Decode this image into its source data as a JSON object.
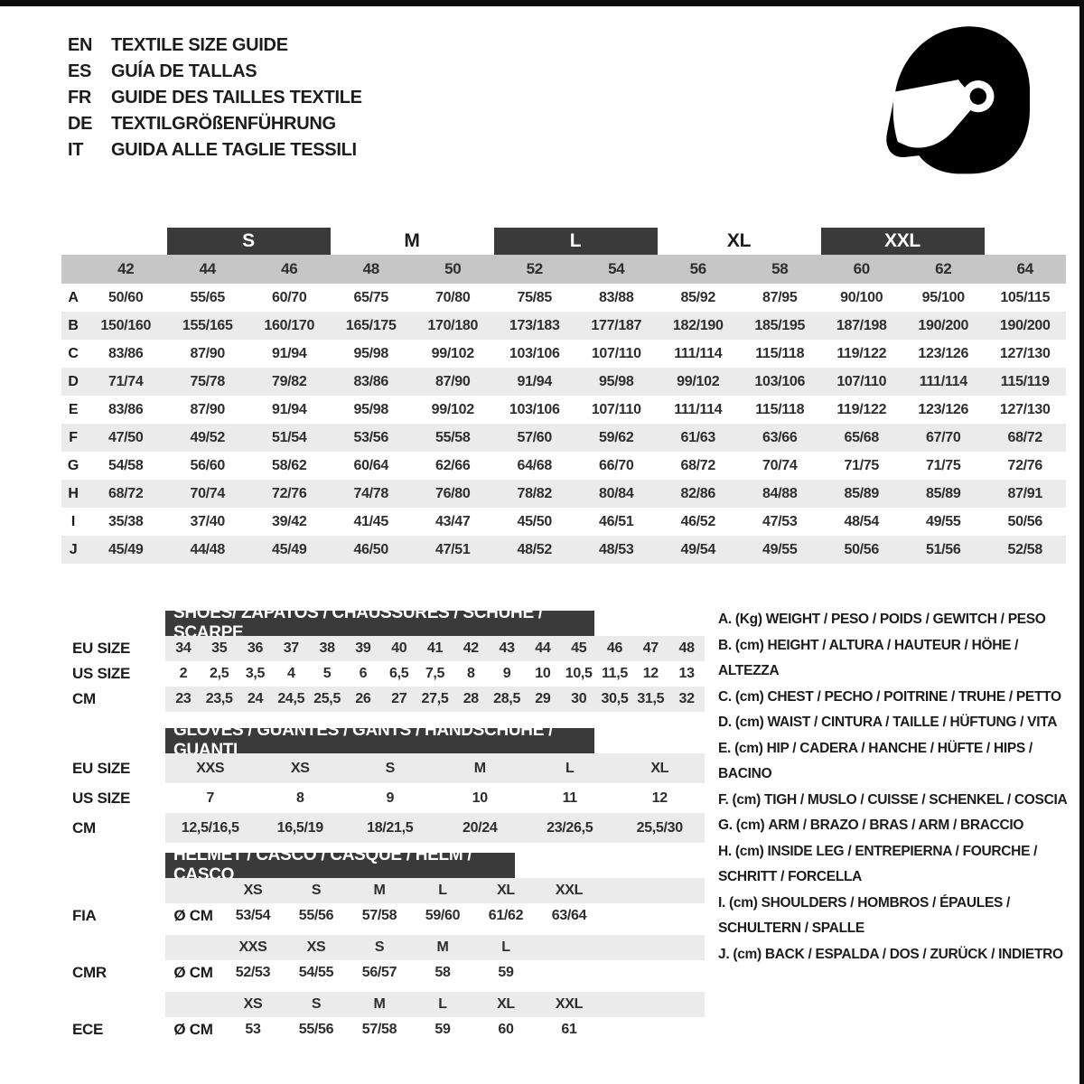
{
  "colors": {
    "bar_dark": "#3a3a3a",
    "header_band_gray": "#c6c6c6",
    "row_stripe_gray": "#ebebeb",
    "ink": "#1c1c1c",
    "frame_black": "#0b0b0b"
  },
  "header": {
    "languages": [
      {
        "code": "EN",
        "title": "TEXTILE SIZE GUIDE"
      },
      {
        "code": "ES",
        "title": "GUÍA DE TALLAS"
      },
      {
        "code": "FR",
        "title": "GUIDE DES TAILLES TEXTILE"
      },
      {
        "code": "DE",
        "title": "TEXTILGRÖßENFÜHRUNG"
      },
      {
        "code": "IT",
        "title": "GUIDA ALLE TAGLIE TESSILI"
      }
    ],
    "helmet_icon": "full-face-racing-helmet"
  },
  "main_table": {
    "size_bands": [
      {
        "label": "S",
        "style": "dark"
      },
      {
        "label": "M",
        "style": "plain"
      },
      {
        "label": "L",
        "style": "dark"
      },
      {
        "label": "XL",
        "style": "plain"
      },
      {
        "label": "XXL",
        "style": "dark"
      }
    ],
    "columns": [
      "42",
      "44",
      "46",
      "48",
      "50",
      "52",
      "54",
      "56",
      "58",
      "60",
      "62",
      "64"
    ],
    "rows": [
      {
        "key": "A",
        "values": [
          "50/60",
          "55/65",
          "60/70",
          "65/75",
          "70/80",
          "75/85",
          "83/88",
          "85/92",
          "87/95",
          "90/100",
          "95/100",
          "105/115"
        ]
      },
      {
        "key": "B",
        "values": [
          "150/160",
          "155/165",
          "160/170",
          "165/175",
          "170/180",
          "173/183",
          "177/187",
          "182/190",
          "185/195",
          "187/198",
          "190/200",
          "190/200"
        ]
      },
      {
        "key": "C",
        "values": [
          "83/86",
          "87/90",
          "91/94",
          "95/98",
          "99/102",
          "103/106",
          "107/110",
          "111/114",
          "115/118",
          "119/122",
          "123/126",
          "127/130"
        ]
      },
      {
        "key": "D",
        "values": [
          "71/74",
          "75/78",
          "79/82",
          "83/86",
          "87/90",
          "91/94",
          "95/98",
          "99/102",
          "103/106",
          "107/110",
          "111/114",
          "115/119"
        ]
      },
      {
        "key": "E",
        "values": [
          "83/86",
          "87/90",
          "91/94",
          "95/98",
          "99/102",
          "103/106",
          "107/110",
          "111/114",
          "115/118",
          "119/122",
          "123/126",
          "127/130"
        ]
      },
      {
        "key": "F",
        "values": [
          "47/50",
          "49/52",
          "51/54",
          "53/56",
          "55/58",
          "57/60",
          "59/62",
          "61/63",
          "63/66",
          "65/68",
          "67/70",
          "68/72"
        ]
      },
      {
        "key": "G",
        "values": [
          "54/58",
          "56/60",
          "58/62",
          "60/64",
          "62/66",
          "64/68",
          "66/70",
          "68/72",
          "70/74",
          "71/75",
          "71/75",
          "72/76"
        ]
      },
      {
        "key": "H",
        "values": [
          "68/72",
          "70/74",
          "72/76",
          "74/78",
          "76/80",
          "78/82",
          "80/84",
          "82/86",
          "84/88",
          "85/89",
          "85/89",
          "87/91"
        ]
      },
      {
        "key": "I",
        "values": [
          "35/38",
          "37/40",
          "39/42",
          "41/45",
          "43/47",
          "45/50",
          "46/51",
          "46/52",
          "47/53",
          "48/54",
          "49/55",
          "50/56"
        ]
      },
      {
        "key": "J",
        "values": [
          "45/49",
          "44/48",
          "45/49",
          "46/50",
          "47/51",
          "48/52",
          "48/53",
          "49/54",
          "49/55",
          "50/56",
          "51/56",
          "52/58"
        ]
      }
    ]
  },
  "shoes": {
    "title": "SHOES/ ZAPATOS / CHAUSSURES / SCHUHE / SCARPE",
    "rows": [
      {
        "label": "EU SIZE",
        "values": [
          "34",
          "35",
          "36",
          "37",
          "38",
          "39",
          "40",
          "41",
          "42",
          "43",
          "44",
          "45",
          "46",
          "47",
          "48"
        ]
      },
      {
        "label": "US SIZE",
        "values": [
          "2",
          "2,5",
          "3,5",
          "4",
          "5",
          "6",
          "6,5",
          "7,5",
          "8",
          "9",
          "10",
          "10,5",
          "11,5",
          "12",
          "13"
        ]
      },
      {
        "label": "CM",
        "values": [
          "23",
          "23,5",
          "24",
          "24,5",
          "25,5",
          "26",
          "27",
          "27,5",
          "28",
          "28,5",
          "29",
          "30",
          "30,5",
          "31,5",
          "32"
        ]
      }
    ]
  },
  "gloves": {
    "title": "GLOVES / GUANTES / GANTS / HANDSCHUHE / GUANTI",
    "rows": [
      {
        "label": "EU SIZE",
        "values": [
          "XXS",
          "XS",
          "S",
          "M",
          "L",
          "XL"
        ]
      },
      {
        "label": "US SIZE",
        "values": [
          "7",
          "8",
          "9",
          "10",
          "11",
          "12"
        ]
      },
      {
        "label": "CM",
        "values": [
          "12,5/16,5",
          "16,5/19",
          "18/21,5",
          "20/24",
          "23/26,5",
          "25,5/30"
        ]
      }
    ]
  },
  "helmet": {
    "title": "HELMET / CASCO / CASQUE / HELM / CASCO",
    "groups": [
      {
        "label": "FIA",
        "unit": "Ø CM",
        "sizes": [
          "XS",
          "S",
          "M",
          "L",
          "XL",
          "XXL"
        ],
        "values": [
          "53/54",
          "55/56",
          "57/58",
          "59/60",
          "61/62",
          "63/64"
        ]
      },
      {
        "label": "CMR",
        "unit": "Ø CM",
        "sizes": [
          "XXS",
          "XS",
          "S",
          "M",
          "L"
        ],
        "values": [
          "52/53",
          "54/55",
          "56/57",
          "58",
          "59"
        ]
      },
      {
        "label": "ECE",
        "unit": "Ø CM",
        "sizes": [
          "XS",
          "S",
          "M",
          "L",
          "XL",
          "XXL"
        ],
        "values": [
          "53",
          "55/56",
          "57/58",
          "59",
          "60",
          "61"
        ]
      }
    ]
  },
  "legend": {
    "items": [
      {
        "key": "A.",
        "unit": "(Kg)",
        "text": "WEIGHT / PESO / POIDS / GEWITCH / PESO"
      },
      {
        "key": "B.",
        "unit": "(cm)",
        "text": "HEIGHT / ALTURA / HAUTEUR / HÖHE / ALTEZZA"
      },
      {
        "key": "C.",
        "unit": "(cm)",
        "text": "CHEST / PECHO / POITRINE / TRUHE / PETTO"
      },
      {
        "key": "D.",
        "unit": "(cm)",
        "text": "WAIST / CINTURA / TAILLE / HÜFTUNG / VITA"
      },
      {
        "key": "E.",
        "unit": "(cm)",
        "text": "HIP / CADERA / HANCHE / HÜFTE / HIPS / BACINO"
      },
      {
        "key": "F.",
        "unit": "(cm)",
        "text": "TIGH / MUSLO / CUISSE / SCHENKEL / COSCIA"
      },
      {
        "key": "G.",
        "unit": "(cm)",
        "text": "ARM / BRAZO / BRAS / ARM / BRACCIO"
      },
      {
        "key": "H.",
        "unit": "(cm)",
        "text": "INSIDE LEG / ENTREPIERNA / FOURCHE / SCHRITT / FORCELLA"
      },
      {
        "key": "I.",
        "unit": "(cm)",
        "text": "SHOULDERS / HOMBROS / ÉPAULES / SCHULTERN / SPALLE"
      },
      {
        "key": "J.",
        "unit": "(cm)",
        "text": "BACK / ESPALDA / DOS / ZURÜCK / INDIETRO"
      }
    ]
  }
}
